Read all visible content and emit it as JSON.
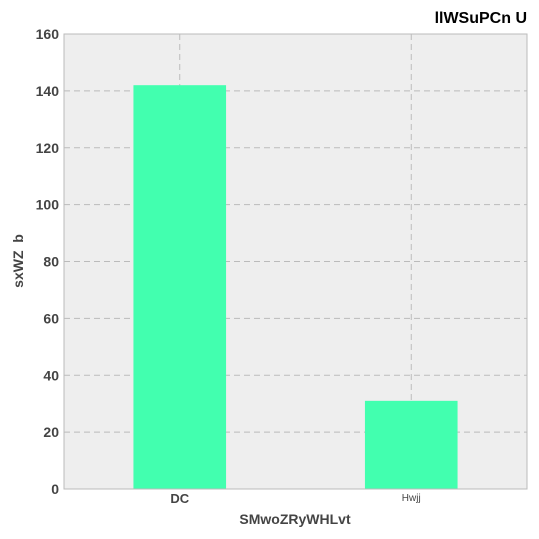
{
  "chart_data": {
    "type": "bar",
    "title": "llWSuPCn U",
    "xlabel": "SMwoZRyWHLvt",
    "ylabel": "sxWZ  b",
    "categories": [
      "DC",
      "Hwjj"
    ],
    "values": [
      142,
      31
    ],
    "ylim": [
      0,
      160
    ],
    "yticks": [
      0,
      20,
      40,
      60,
      80,
      100,
      120,
      140,
      160
    ],
    "grid": true,
    "colors": {
      "bar": "#42ffaf",
      "plot_background": "#eeeeee",
      "grid": "#bbbbbb",
      "frame": "#bbbbbb"
    }
  }
}
